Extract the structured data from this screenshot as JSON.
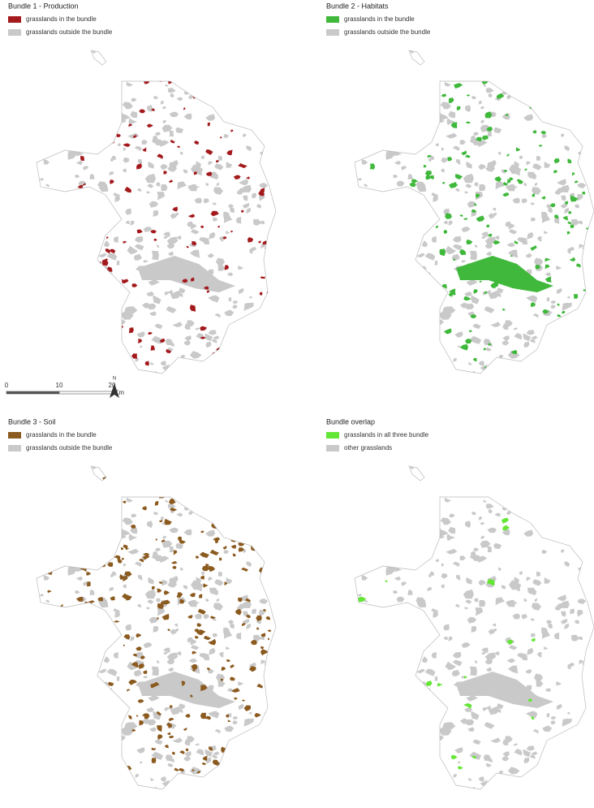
{
  "panels": [
    {
      "title": "Bundle 1 - Production",
      "legend": [
        {
          "label": "grasslands in the bundle",
          "color": "#a3191c"
        },
        {
          "label": "grasslands outside the bundle",
          "color": "#c9c9c9"
        }
      ]
    },
    {
      "title": "Bundle 2 - Habitats",
      "legend": [
        {
          "label": "grasslands in the bundle",
          "color": "#3fb83b"
        },
        {
          "label": "grasslands outside the bundle",
          "color": "#c9c9c9"
        }
      ]
    },
    {
      "title": "Bundle 3 - Soil",
      "legend": [
        {
          "label": "grasslands in the bundle",
          "color": "#8b5a1f"
        },
        {
          "label": "grasslands outside the bundle",
          "color": "#c9c9c9"
        }
      ]
    },
    {
      "title": "Bundle overlap",
      "legend": [
        {
          "label": "grasslands in all three bundle",
          "color": "#63e634"
        },
        {
          "label": "other grasslands",
          "color": "#c9c9c9"
        }
      ]
    }
  ],
  "scale_bar": {
    "ticks": [
      0,
      10,
      20
    ],
    "unit": "Km"
  },
  "north": "N"
}
